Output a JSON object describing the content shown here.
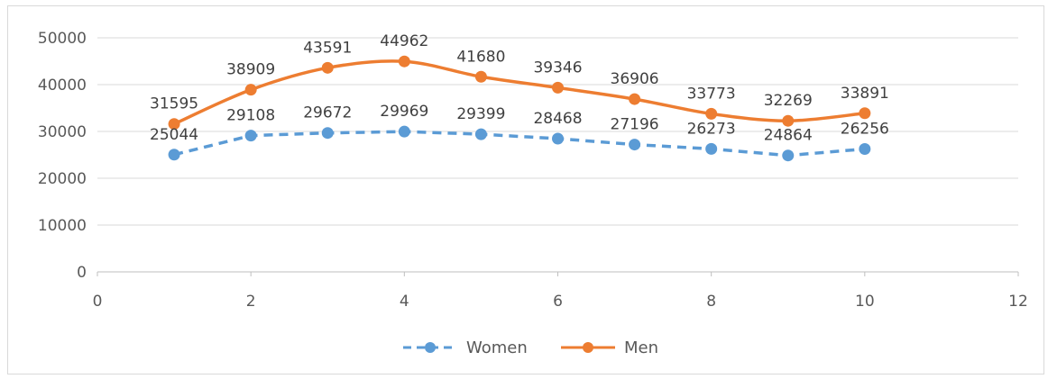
{
  "chart_data": {
    "type": "line",
    "title": "",
    "xlabel": "",
    "ylabel": "",
    "xlim": [
      0,
      12
    ],
    "ylim": [
      0,
      50000
    ],
    "x_ticks": [
      "0",
      "2",
      "4",
      "6",
      "8",
      "10",
      "12"
    ],
    "y_ticks": [
      "0",
      "10000",
      "20000",
      "30000",
      "40000",
      "50000"
    ],
    "grid": "horizontal",
    "legend_position": "bottom",
    "x": [
      1,
      2,
      3,
      4,
      5,
      6,
      7,
      8,
      9,
      10
    ],
    "series": [
      {
        "name": "Women",
        "color": "#5b9bd5",
        "line_style": "dashed",
        "smooth": false,
        "values": [
          25044,
          29108,
          29672,
          29969,
          29399,
          28468,
          27196,
          26273,
          24864,
          26256
        ]
      },
      {
        "name": "Men",
        "color": "#ed7d31",
        "line_style": "solid",
        "smooth": true,
        "values": [
          31595,
          38909,
          43591,
          44962,
          41680,
          39346,
          36906,
          33773,
          32269,
          33891
        ]
      }
    ]
  }
}
